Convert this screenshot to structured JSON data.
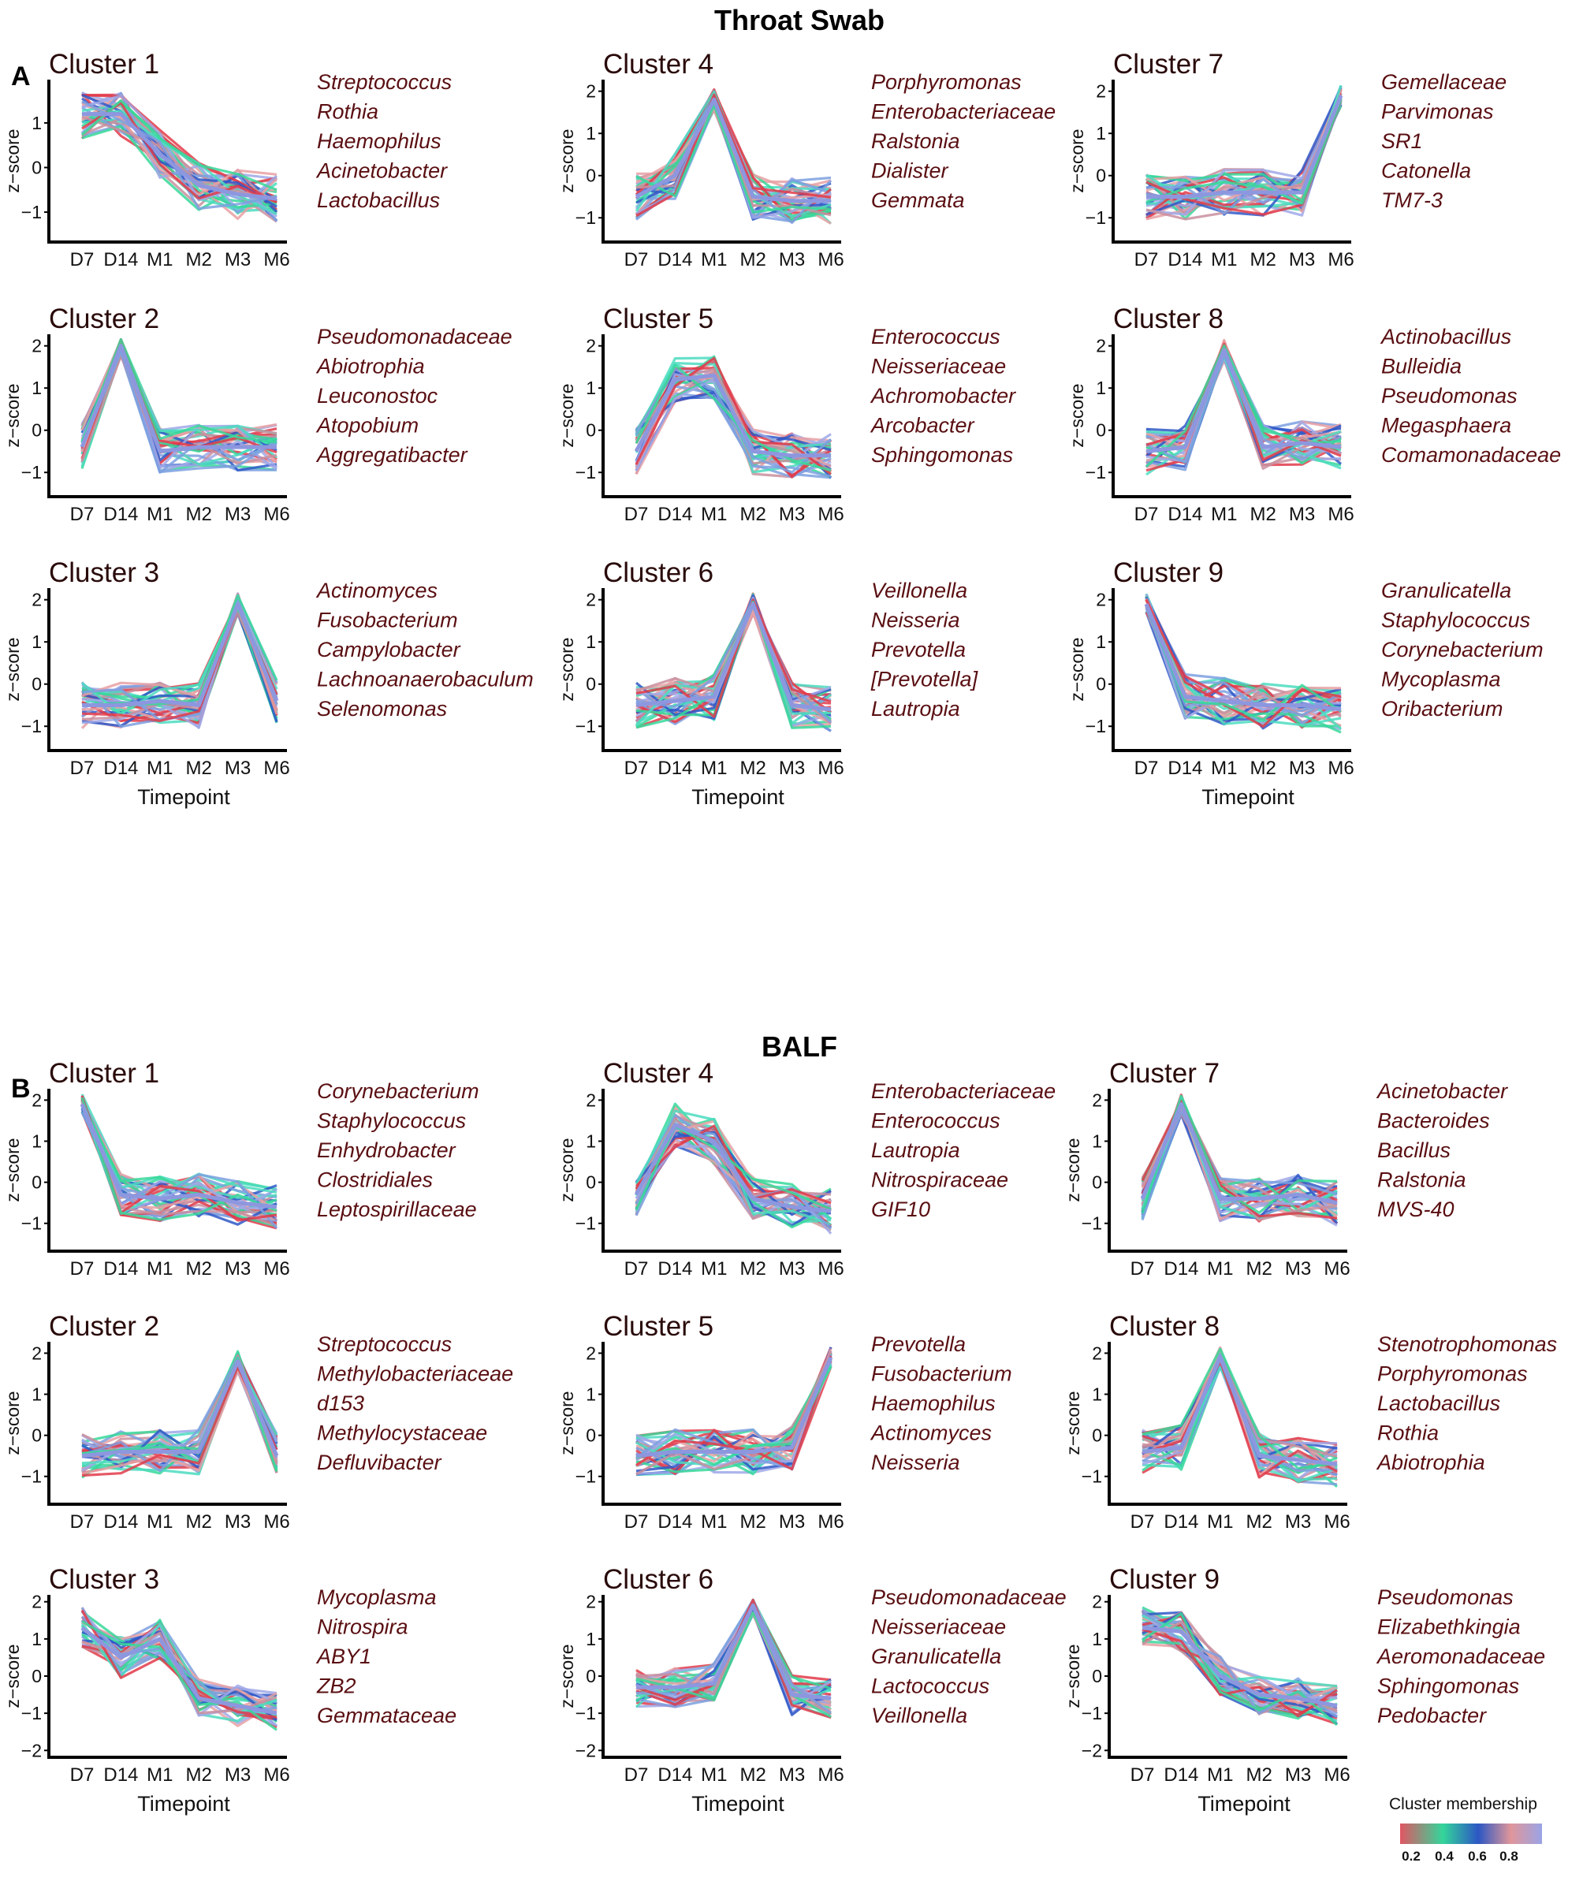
{
  "figure": {
    "titles": [
      "Throat Swab",
      "BALF"
    ],
    "panel_letters": [
      "A",
      "B"
    ],
    "y_axis_label": "z−score",
    "x_axis_label": "Timepoint",
    "legend": {
      "title": "Cluster membership",
      "ticks": [
        "0.2",
        "0.4",
        "0.6",
        "0.8"
      ],
      "colors": [
        "#e05663",
        "#34d59a",
        "#2c57c4",
        "#e0969a",
        "#9aa4e6"
      ]
    },
    "series_colors": [
      "#e23b4a",
      "#37d89a",
      "#2f58c8",
      "#e7a0a3",
      "#9fa8e8",
      "#4bdcc0",
      "#c98f9f",
      "#7da0e0"
    ]
  },
  "chart_data": [
    {
      "panel": "A",
      "group": "Throat Swab",
      "type": "line",
      "title": "Cluster 1",
      "x": [
        "D7",
        "D14",
        "M1",
        "M2",
        "M3",
        "M6"
      ],
      "xlabel": "",
      "ylabel": "z−score",
      "yticks": [
        "1",
        "0",
        "−1"
      ],
      "ylim": [
        -1.6,
        1.9
      ],
      "taxa": [
        "Streptococcus",
        "Rothia",
        "Haemophilus",
        "Acinetobacter",
        "Lactobacillus"
      ],
      "mean": [
        1.2,
        1.2,
        0.3,
        -0.4,
        -0.6,
        -0.7
      ]
    },
    {
      "panel": "A",
      "group": "Throat Swab",
      "type": "line",
      "title": "Cluster 2",
      "x": [
        "D7",
        "D14",
        "M1",
        "M2",
        "M3",
        "M6"
      ],
      "xlabel": "",
      "ylabel": "z−score",
      "yticks": [
        "2",
        "1",
        "0",
        "−1"
      ],
      "ylim": [
        -1.5,
        2.2
      ],
      "taxa": [
        "Pseudomonadaceae",
        "Abiotrophia",
        "Leuconostoc",
        "Atopobium",
        "Aggregatibacter"
      ],
      "mean": [
        -0.4,
        2.0,
        -0.5,
        -0.4,
        -0.4,
        -0.4
      ]
    },
    {
      "panel": "A",
      "group": "Throat Swab",
      "type": "line",
      "title": "Cluster 3",
      "x": [
        "D7",
        "D14",
        "M1",
        "M2",
        "M3",
        "M6"
      ],
      "xlabel": "Timepoint",
      "ylabel": "z−score",
      "yticks": [
        "2",
        "1",
        "0",
        "−1"
      ],
      "ylim": [
        -1.5,
        2.2
      ],
      "taxa": [
        "Actinomyces",
        "Fusobacterium",
        "Campylobacter",
        "Lachnoanaerobaculum",
        "Selenomonas"
      ],
      "mean": [
        -0.5,
        -0.5,
        -0.4,
        -0.5,
        1.9,
        -0.4
      ]
    },
    {
      "panel": "A",
      "group": "Throat Swab",
      "type": "line",
      "title": "Cluster 4",
      "x": [
        "D7",
        "D14",
        "M1",
        "M2",
        "M3",
        "M6"
      ],
      "xlabel": "",
      "ylabel": "z−score",
      "yticks": [
        "2",
        "1",
        "0",
        "−1"
      ],
      "ylim": [
        -1.5,
        2.2
      ],
      "taxa": [
        "Porphyromonas",
        "Enterobacteriaceae",
        "Ralstonia",
        "Dialister",
        "Gemmata"
      ],
      "mean": [
        -0.5,
        0.0,
        1.8,
        -0.5,
        -0.6,
        -0.6
      ]
    },
    {
      "panel": "A",
      "group": "Throat Swab",
      "type": "line",
      "title": "Cluster 5",
      "x": [
        "D7",
        "D14",
        "M1",
        "M2",
        "M3",
        "M6"
      ],
      "xlabel": "",
      "ylabel": "z−score",
      "yticks": [
        "2",
        "1",
        "0",
        "−1"
      ],
      "ylim": [
        -1.5,
        2.2
      ],
      "taxa": [
        "Enterococcus",
        "Neisseriaceae",
        "Achromobacter",
        "Arcobacter",
        "Sphingomonas"
      ],
      "mean": [
        -0.5,
        1.2,
        1.3,
        -0.5,
        -0.6,
        -0.6
      ]
    },
    {
      "panel": "A",
      "group": "Throat Swab",
      "type": "line",
      "title": "Cluster 6",
      "x": [
        "D7",
        "D14",
        "M1",
        "M2",
        "M3",
        "M6"
      ],
      "xlabel": "Timepoint",
      "ylabel": "z−score",
      "yticks": [
        "2",
        "1",
        "0",
        "−1"
      ],
      "ylim": [
        -1.5,
        2.2
      ],
      "taxa": [
        "Veillonella",
        "Neisseria",
        "Prevotella",
        "[Prevotella]",
        "Lautropia"
      ],
      "mean": [
        -0.5,
        -0.4,
        -0.3,
        1.9,
        -0.5,
        -0.6
      ]
    },
    {
      "panel": "A",
      "group": "Throat Swab",
      "type": "line",
      "title": "Cluster 7",
      "x": [
        "D7",
        "D14",
        "M1",
        "M2",
        "M3",
        "M6"
      ],
      "xlabel": "",
      "ylabel": "z−score",
      "yticks": [
        "2",
        "1",
        "0",
        "−1"
      ],
      "ylim": [
        -1.5,
        2.2
      ],
      "taxa": [
        "Gemellaceae",
        "Parvimonas",
        "SR1",
        "Catonella",
        "TM7-3"
      ],
      "mean": [
        -0.5,
        -0.5,
        -0.4,
        -0.4,
        -0.4,
        1.9
      ]
    },
    {
      "panel": "A",
      "group": "Throat Swab",
      "type": "line",
      "title": "Cluster 8",
      "x": [
        "D7",
        "D14",
        "M1",
        "M2",
        "M3",
        "M6"
      ],
      "xlabel": "",
      "ylabel": "z−score",
      "yticks": [
        "2",
        "1",
        "0",
        "−1"
      ],
      "ylim": [
        -1.5,
        2.2
      ],
      "taxa": [
        "Actinobacillus",
        "Bulleidia",
        "Pseudomonas",
        "Megasphaera",
        "Comamonadaceae"
      ],
      "mean": [
        -0.5,
        -0.4,
        1.9,
        -0.4,
        -0.3,
        -0.4
      ]
    },
    {
      "panel": "A",
      "group": "Throat Swab",
      "type": "line",
      "title": "Cluster 9",
      "x": [
        "D7",
        "D14",
        "M1",
        "M2",
        "M3",
        "M6"
      ],
      "xlabel": "Timepoint",
      "ylabel": "z−score",
      "yticks": [
        "2",
        "1",
        "0",
        "−1"
      ],
      "ylim": [
        -1.5,
        2.2
      ],
      "taxa": [
        "Granulicatella",
        "Staphylococcus",
        "Corynebacterium",
        "Mycoplasma",
        "Oribacterium"
      ],
      "mean": [
        1.9,
        -0.3,
        -0.4,
        -0.5,
        -0.5,
        -0.6
      ]
    },
    {
      "panel": "B",
      "group": "BALF",
      "type": "line",
      "title": "Cluster 1",
      "x": [
        "D7",
        "D14",
        "M1",
        "M2",
        "M3",
        "M6"
      ],
      "xlabel": "",
      "ylabel": "z−score",
      "yticks": [
        "2",
        "1",
        "0",
        "−1"
      ],
      "ylim": [
        -1.6,
        2.2
      ],
      "taxa": [
        "Corynebacterium",
        "Staphylococcus",
        "Enhydrobacter",
        "Clostridiales",
        "Leptospirillaceae"
      ],
      "mean": [
        1.9,
        -0.3,
        -0.4,
        -0.3,
        -0.5,
        -0.6
      ]
    },
    {
      "panel": "B",
      "group": "BALF",
      "type": "line",
      "title": "Cluster 2",
      "x": [
        "D7",
        "D14",
        "M1",
        "M2",
        "M3",
        "M6"
      ],
      "xlabel": "",
      "ylabel": "z−score",
      "yticks": [
        "2",
        "1",
        "0",
        "−1"
      ],
      "ylim": [
        -1.6,
        2.2
      ],
      "taxa": [
        "Streptococcus",
        "Methylobacteriaceae",
        "d153",
        "Methylocystaceae",
        "Defluvibacter"
      ],
      "mean": [
        -0.5,
        -0.4,
        -0.4,
        -0.4,
        1.8,
        -0.5
      ]
    },
    {
      "panel": "B",
      "group": "BALF",
      "type": "line",
      "title": "Cluster 3",
      "x": [
        "D7",
        "D14",
        "M1",
        "M2",
        "M3",
        "M6"
      ],
      "xlabel": "Timepoint",
      "ylabel": "z−score",
      "yticks": [
        "2",
        "1",
        "0",
        "−1",
        "−2"
      ],
      "ylim": [
        -2.1,
        2.1
      ],
      "taxa": [
        "Mycoplasma",
        "Nitrospira",
        "ABY1",
        "ZB2",
        "Gemmataceae"
      ],
      "mean": [
        1.3,
        0.5,
        1.0,
        -0.6,
        -0.8,
        -1.0
      ]
    },
    {
      "panel": "B",
      "group": "BALF",
      "type": "line",
      "title": "Cluster 4",
      "x": [
        "D7",
        "D14",
        "M1",
        "M2",
        "M3",
        "M6"
      ],
      "xlabel": "",
      "ylabel": "z−score",
      "yticks": [
        "2",
        "1",
        "0",
        "−1"
      ],
      "ylim": [
        -1.6,
        2.2
      ],
      "taxa": [
        "Enterobacteriaceae",
        "Enterococcus",
        "Lautropia",
        "Nitrospiraceae",
        "GIF10"
      ],
      "mean": [
        -0.3,
        1.4,
        1.0,
        -0.4,
        -0.6,
        -0.7
      ]
    },
    {
      "panel": "B",
      "group": "BALF",
      "type": "line",
      "title": "Cluster 5",
      "x": [
        "D7",
        "D14",
        "M1",
        "M2",
        "M3",
        "M6"
      ],
      "xlabel": "",
      "ylabel": "z−score",
      "yticks": [
        "2",
        "1",
        "0",
        "−1"
      ],
      "ylim": [
        -1.6,
        2.2
      ],
      "taxa": [
        "Prevotella",
        "Fusobacterium",
        "Haemophilus",
        "Actinomyces",
        "Neisseria"
      ],
      "mean": [
        -0.5,
        -0.4,
        -0.4,
        -0.4,
        -0.3,
        1.9
      ]
    },
    {
      "panel": "B",
      "group": "BALF",
      "type": "line",
      "title": "Cluster 6",
      "x": [
        "D7",
        "D14",
        "M1",
        "M2",
        "M3",
        "M6"
      ],
      "xlabel": "Timepoint",
      "ylabel": "z−score",
      "yticks": [
        "2",
        "1",
        "0",
        "−1",
        "−2"
      ],
      "ylim": [
        -2.1,
        2.1
      ],
      "taxa": [
        "Pseudomonadaceae",
        "Neisseriaceae",
        "Granulicatella",
        "Lactococcus",
        "Veillonella"
      ],
      "mean": [
        -0.3,
        -0.3,
        -0.2,
        1.9,
        -0.5,
        -0.6
      ]
    },
    {
      "panel": "B",
      "group": "BALF",
      "type": "line",
      "title": "Cluster 7",
      "x": [
        "D7",
        "D14",
        "M1",
        "M2",
        "M3",
        "M6"
      ],
      "xlabel": "",
      "ylabel": "z−score",
      "yticks": [
        "2",
        "1",
        "0",
        "−1"
      ],
      "ylim": [
        -1.6,
        2.2
      ],
      "taxa": [
        "Acinetobacter",
        "Bacteroides",
        "Bacillus",
        "Ralstonia",
        "MVS-40"
      ],
      "mean": [
        -0.4,
        1.9,
        -0.4,
        -0.4,
        -0.3,
        -0.5
      ]
    },
    {
      "panel": "B",
      "group": "BALF",
      "type": "line",
      "title": "Cluster 8",
      "x": [
        "D7",
        "D14",
        "M1",
        "M2",
        "M3",
        "M6"
      ],
      "xlabel": "",
      "ylabel": "z−score",
      "yticks": [
        "2",
        "1",
        "0",
        "−1"
      ],
      "ylim": [
        -1.6,
        2.2
      ],
      "taxa": [
        "Stenotrophomonas",
        "Porphyromonas",
        "Lactobacillus",
        "Rothia",
        "Abiotrophia"
      ],
      "mean": [
        -0.4,
        -0.3,
        1.9,
        -0.5,
        -0.6,
        -0.7
      ]
    },
    {
      "panel": "B",
      "group": "BALF",
      "type": "line",
      "title": "Cluster 9",
      "x": [
        "D7",
        "D14",
        "M1",
        "M2",
        "M3",
        "M6"
      ],
      "xlabel": "Timepoint",
      "ylabel": "z−score",
      "yticks": [
        "2",
        "1",
        "0",
        "−1",
        "−2"
      ],
      "ylim": [
        -2.1,
        2.1
      ],
      "taxa": [
        "Pseudomonas",
        "Elizabethkingia",
        "Aeromonadaceae",
        "Sphingomonas",
        "Pedobacter"
      ],
      "mean": [
        1.3,
        1.2,
        0.0,
        -0.5,
        -0.6,
        -0.8
      ]
    }
  ]
}
